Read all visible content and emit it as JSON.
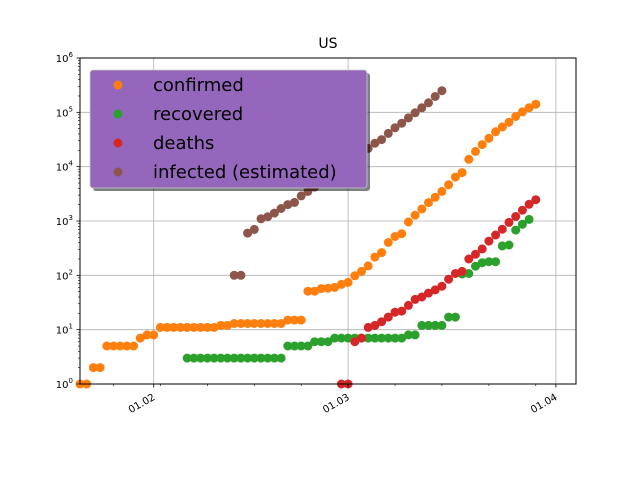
{
  "chart_data": {
    "type": "scatter",
    "title": "US",
    "xlabel": "",
    "ylabel": "",
    "y_scale": "log",
    "ylim": [
      1,
      1000000
    ],
    "xlim": [
      "2020-01-21",
      "2020-04-04"
    ],
    "grid": true,
    "legend_position": "top-left",
    "x_ticks": [
      {
        "date": "2020-02-01",
        "label": "01.02"
      },
      {
        "date": "2020-03-01",
        "label": "01.03"
      },
      {
        "date": "2020-04-01",
        "label": "01.04"
      }
    ],
    "y_ticks": [
      {
        "value": 1,
        "base": "10",
        "exp": "0"
      },
      {
        "value": 10,
        "base": "10",
        "exp": "1"
      },
      {
        "value": 100,
        "base": "10",
        "exp": "2"
      },
      {
        "value": 1000,
        "base": "10",
        "exp": "3"
      },
      {
        "value": 10000,
        "base": "10",
        "exp": "4"
      },
      {
        "value": 100000,
        "base": "10",
        "exp": "5"
      },
      {
        "value": 1000000,
        "base": "10",
        "exp": "6"
      }
    ],
    "series": [
      {
        "name": "confirmed",
        "color": "#ff7f0e",
        "points": [
          [
            "2020-01-21",
            1
          ],
          [
            "2020-01-22",
            1
          ],
          [
            "2020-01-23",
            2
          ],
          [
            "2020-01-24",
            2
          ],
          [
            "2020-01-25",
            5
          ],
          [
            "2020-01-26",
            5
          ],
          [
            "2020-01-27",
            5
          ],
          [
            "2020-01-28",
            5
          ],
          [
            "2020-01-29",
            5
          ],
          [
            "2020-01-30",
            7
          ],
          [
            "2020-01-31",
            8
          ],
          [
            "2020-02-01",
            8
          ],
          [
            "2020-02-02",
            11
          ],
          [
            "2020-02-03",
            11
          ],
          [
            "2020-02-04",
            11
          ],
          [
            "2020-02-05",
            11
          ],
          [
            "2020-02-06",
            11
          ],
          [
            "2020-02-07",
            11
          ],
          [
            "2020-02-08",
            11
          ],
          [
            "2020-02-09",
            11
          ],
          [
            "2020-02-10",
            11
          ],
          [
            "2020-02-11",
            12
          ],
          [
            "2020-02-12",
            12
          ],
          [
            "2020-02-13",
            13
          ],
          [
            "2020-02-14",
            13
          ],
          [
            "2020-02-15",
            13
          ],
          [
            "2020-02-16",
            13
          ],
          [
            "2020-02-17",
            13
          ],
          [
            "2020-02-18",
            13
          ],
          [
            "2020-02-19",
            13
          ],
          [
            "2020-02-20",
            13
          ],
          [
            "2020-02-21",
            15
          ],
          [
            "2020-02-22",
            15
          ],
          [
            "2020-02-23",
            15
          ],
          [
            "2020-02-24",
            51
          ],
          [
            "2020-02-25",
            51
          ],
          [
            "2020-02-26",
            57
          ],
          [
            "2020-02-27",
            58
          ],
          [
            "2020-02-28",
            60
          ],
          [
            "2020-02-29",
            68
          ],
          [
            "2020-03-01",
            74
          ],
          [
            "2020-03-02",
            98
          ],
          [
            "2020-03-03",
            118
          ],
          [
            "2020-03-04",
            149
          ],
          [
            "2020-03-05",
            217
          ],
          [
            "2020-03-06",
            262
          ],
          [
            "2020-03-07",
            402
          ],
          [
            "2020-03-08",
            518
          ],
          [
            "2020-03-09",
            583
          ],
          [
            "2020-03-10",
            959
          ],
          [
            "2020-03-11",
            1281
          ],
          [
            "2020-03-12",
            1663
          ],
          [
            "2020-03-13",
            2179
          ],
          [
            "2020-03-14",
            2727
          ],
          [
            "2020-03-15",
            3499
          ],
          [
            "2020-03-16",
            4632
          ],
          [
            "2020-03-17",
            6421
          ],
          [
            "2020-03-18",
            7786
          ],
          [
            "2020-03-19",
            13680
          ],
          [
            "2020-03-20",
            19101
          ],
          [
            "2020-03-21",
            25493
          ],
          [
            "2020-03-22",
            33276
          ],
          [
            "2020-03-23",
            43847
          ],
          [
            "2020-03-24",
            53740
          ],
          [
            "2020-03-25",
            65778
          ],
          [
            "2020-03-26",
            83836
          ],
          [
            "2020-03-27",
            101657
          ],
          [
            "2020-03-28",
            121478
          ],
          [
            "2020-03-29",
            140886
          ]
        ]
      },
      {
        "name": "recovered",
        "color": "#2ca02c",
        "points": [
          [
            "2020-02-06",
            3
          ],
          [
            "2020-02-07",
            3
          ],
          [
            "2020-02-08",
            3
          ],
          [
            "2020-02-09",
            3
          ],
          [
            "2020-02-10",
            3
          ],
          [
            "2020-02-11",
            3
          ],
          [
            "2020-02-12",
            3
          ],
          [
            "2020-02-13",
            3
          ],
          [
            "2020-02-14",
            3
          ],
          [
            "2020-02-15",
            3
          ],
          [
            "2020-02-16",
            3
          ],
          [
            "2020-02-17",
            3
          ],
          [
            "2020-02-18",
            3
          ],
          [
            "2020-02-19",
            3
          ],
          [
            "2020-02-20",
            3
          ],
          [
            "2020-02-21",
            5
          ],
          [
            "2020-02-22",
            5
          ],
          [
            "2020-02-23",
            5
          ],
          [
            "2020-02-24",
            5
          ],
          [
            "2020-02-25",
            6
          ],
          [
            "2020-02-26",
            6
          ],
          [
            "2020-02-27",
            6
          ],
          [
            "2020-02-28",
            7
          ],
          [
            "2020-02-29",
            7
          ],
          [
            "2020-03-01",
            7
          ],
          [
            "2020-03-02",
            7
          ],
          [
            "2020-03-03",
            7
          ],
          [
            "2020-03-04",
            7
          ],
          [
            "2020-03-05",
            7
          ],
          [
            "2020-03-06",
            7
          ],
          [
            "2020-03-07",
            7
          ],
          [
            "2020-03-08",
            7
          ],
          [
            "2020-03-09",
            7
          ],
          [
            "2020-03-10",
            8
          ],
          [
            "2020-03-11",
            8
          ],
          [
            "2020-03-12",
            12
          ],
          [
            "2020-03-13",
            12
          ],
          [
            "2020-03-14",
            12
          ],
          [
            "2020-03-15",
            12
          ],
          [
            "2020-03-16",
            17
          ],
          [
            "2020-03-17",
            17
          ],
          [
            "2020-03-18",
            106
          ],
          [
            "2020-03-19",
            108
          ],
          [
            "2020-03-20",
            147
          ],
          [
            "2020-03-21",
            171
          ],
          [
            "2020-03-22",
            178
          ],
          [
            "2020-03-23",
            178
          ],
          [
            "2020-03-24",
            348
          ],
          [
            "2020-03-25",
            361
          ],
          [
            "2020-03-26",
            681
          ],
          [
            "2020-03-27",
            869
          ],
          [
            "2020-03-28",
            1072
          ]
        ]
      },
      {
        "name": "deaths",
        "color": "#d62728",
        "points": [
          [
            "2020-02-29",
            1
          ],
          [
            "2020-03-01",
            1
          ],
          [
            "2020-03-02",
            6
          ],
          [
            "2020-03-03",
            7
          ],
          [
            "2020-03-04",
            11
          ],
          [
            "2020-03-05",
            12
          ],
          [
            "2020-03-06",
            14
          ],
          [
            "2020-03-07",
            17
          ],
          [
            "2020-03-08",
            21
          ],
          [
            "2020-03-09",
            22
          ],
          [
            "2020-03-10",
            28
          ],
          [
            "2020-03-11",
            36
          ],
          [
            "2020-03-12",
            40
          ],
          [
            "2020-03-13",
            47
          ],
          [
            "2020-03-14",
            54
          ],
          [
            "2020-03-15",
            63
          ],
          [
            "2020-03-16",
            85
          ],
          [
            "2020-03-17",
            108
          ],
          [
            "2020-03-18",
            118
          ],
          [
            "2020-03-19",
            200
          ],
          [
            "2020-03-20",
            244
          ],
          [
            "2020-03-21",
            307
          ],
          [
            "2020-03-22",
            427
          ],
          [
            "2020-03-23",
            552
          ],
          [
            "2020-03-24",
            706
          ],
          [
            "2020-03-25",
            942
          ],
          [
            "2020-03-26",
            1209
          ],
          [
            "2020-03-27",
            1581
          ],
          [
            "2020-03-28",
            2026
          ],
          [
            "2020-03-29",
            2467
          ]
        ]
      },
      {
        "name": "infected (estimated)",
        "color": "#8c564b",
        "points": [
          [
            "2020-02-13",
            100
          ],
          [
            "2020-02-14",
            100
          ],
          [
            "2020-02-15",
            600
          ],
          [
            "2020-02-16",
            700
          ],
          [
            "2020-02-17",
            1100
          ],
          [
            "2020-02-18",
            1200
          ],
          [
            "2020-02-19",
            1400
          ],
          [
            "2020-02-20",
            1700
          ],
          [
            "2020-02-21",
            2000
          ],
          [
            "2020-02-22",
            2200
          ],
          [
            "2020-02-23",
            2900
          ],
          [
            "2020-02-24",
            3500
          ],
          [
            "2020-02-25",
            4200
          ],
          [
            "2020-02-26",
            5000
          ],
          [
            "2020-02-27",
            6200
          ],
          [
            "2020-02-28",
            7400
          ],
          [
            "2020-02-29",
            9600
          ],
          [
            "2020-03-01",
            11900
          ],
          [
            "2020-03-02",
            14900
          ],
          [
            "2020-03-03",
            18500
          ],
          [
            "2020-03-04",
            21700
          ],
          [
            "2020-03-05",
            27000
          ],
          [
            "2020-03-06",
            31500
          ],
          [
            "2020-03-07",
            41000
          ],
          [
            "2020-03-08",
            52000
          ],
          [
            "2020-03-09",
            63000
          ],
          [
            "2020-03-10",
            79000
          ],
          [
            "2020-03-11",
            98000
          ],
          [
            "2020-03-12",
            121000
          ],
          [
            "2020-03-13",
            150000
          ],
          [
            "2020-03-14",
            196000
          ],
          [
            "2020-03-15",
            250000
          ]
        ]
      }
    ],
    "legend": {
      "background": "#9467bd",
      "items": [
        "confirmed",
        "recovered",
        "deaths",
        "infected (estimated)"
      ]
    }
  }
}
